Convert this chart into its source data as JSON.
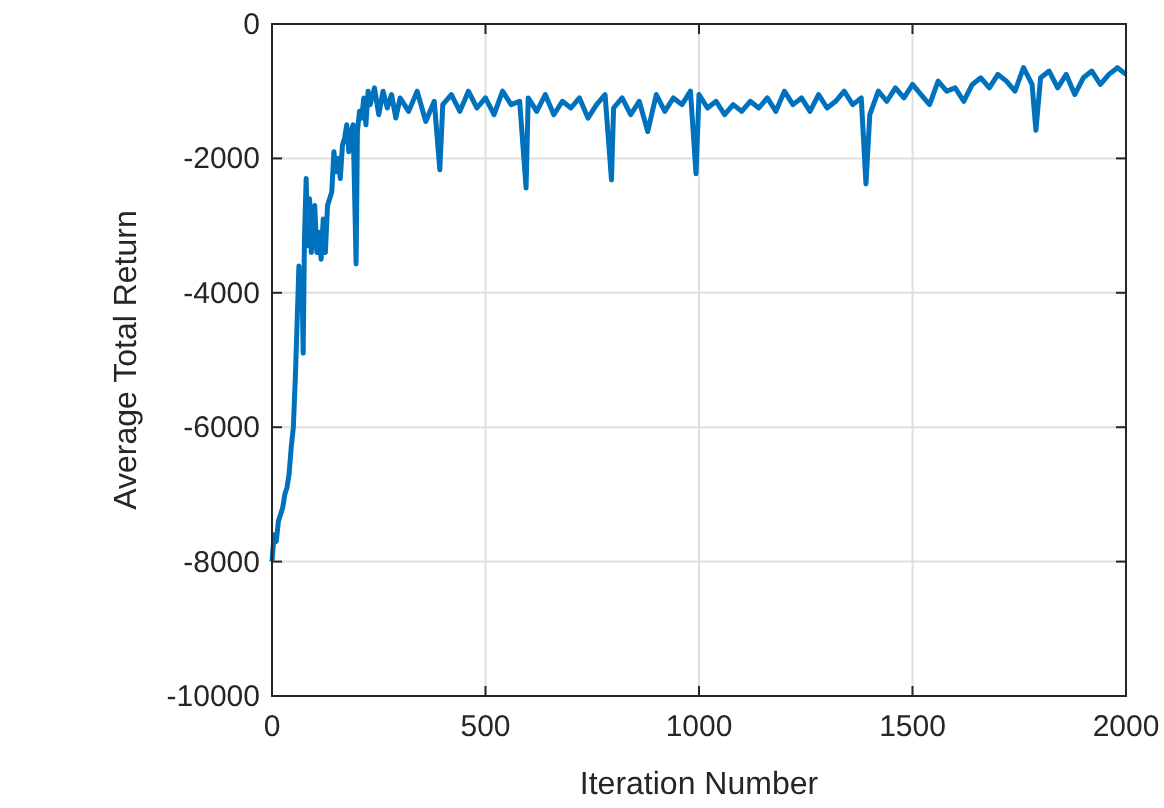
{
  "chart_data": {
    "type": "line",
    "xlabel": "Iteration Number",
    "ylabel": "Average Total Return",
    "xlim": [
      0,
      2000
    ],
    "ylim": [
      -10000,
      0
    ],
    "xticks": [
      0,
      500,
      1000,
      1500,
      2000
    ],
    "yticks": [
      -10000,
      -8000,
      -6000,
      -4000,
      -2000,
      0
    ],
    "grid": true,
    "series": [
      {
        "color": "#0072bd",
        "x": [
          0,
          5,
          10,
          15,
          20,
          25,
          30,
          35,
          40,
          45,
          50,
          55,
          60,
          63,
          66,
          70,
          73,
          76,
          80,
          84,
          88,
          92,
          96,
          100,
          105,
          110,
          115,
          120,
          125,
          130,
          135,
          140,
          145,
          150,
          155,
          160,
          165,
          170,
          175,
          180,
          185,
          190,
          197,
          200,
          205,
          210,
          215,
          220,
          225,
          230,
          240,
          250,
          260,
          270,
          280,
          290,
          300,
          320,
          340,
          360,
          380,
          393,
          400,
          420,
          440,
          460,
          480,
          500,
          520,
          540,
          560,
          580,
          595,
          600,
          620,
          640,
          660,
          680,
          700,
          720,
          740,
          760,
          780,
          795,
          800,
          820,
          840,
          860,
          880,
          900,
          920,
          940,
          960,
          980,
          993,
          1000,
          1020,
          1040,
          1060,
          1080,
          1100,
          1120,
          1140,
          1160,
          1180,
          1200,
          1220,
          1240,
          1260,
          1280,
          1300,
          1320,
          1340,
          1360,
          1380,
          1391,
          1400,
          1420,
          1440,
          1460,
          1480,
          1500,
          1520,
          1540,
          1560,
          1580,
          1600,
          1620,
          1640,
          1660,
          1680,
          1700,
          1720,
          1740,
          1760,
          1780,
          1789,
          1800,
          1820,
          1840,
          1860,
          1880,
          1900,
          1920,
          1940,
          1960,
          1980,
          2000
        ],
        "values": [
          -8000,
          -7600,
          -7700,
          -7400,
          -7300,
          -7200,
          -7000,
          -6900,
          -6700,
          -6300,
          -6000,
          -5200,
          -4200,
          -3600,
          -4000,
          -3700,
          -4900,
          -3200,
          -2300,
          -3300,
          -2600,
          -3400,
          -3000,
          -2700,
          -3400,
          -3100,
          -3500,
          -2900,
          -3400,
          -2700,
          -2600,
          -2500,
          -1900,
          -2200,
          -2000,
          -2300,
          -1800,
          -1700,
          -1500,
          -1900,
          -1600,
          -1500,
          -3570,
          -1600,
          -1300,
          -1400,
          -1100,
          -1500,
          -1000,
          -1200,
          -950,
          -1350,
          -1000,
          -1250,
          -1050,
          -1400,
          -1100,
          -1300,
          -1000,
          -1450,
          -1150,
          -2170,
          -1200,
          -1050,
          -1300,
          -1000,
          -1250,
          -1100,
          -1350,
          -1000,
          -1200,
          -1150,
          -2440,
          -1100,
          -1300,
          -1050,
          -1350,
          -1150,
          -1250,
          -1100,
          -1400,
          -1200,
          -1050,
          -2320,
          -1250,
          -1100,
          -1350,
          -1150,
          -1600,
          -1050,
          -1300,
          -1100,
          -1200,
          -1000,
          -2230,
          -1050,
          -1250,
          -1150,
          -1350,
          -1200,
          -1300,
          -1150,
          -1250,
          -1100,
          -1300,
          -1000,
          -1200,
          -1100,
          -1300,
          -1050,
          -1250,
          -1150,
          -1000,
          -1200,
          -1100,
          -2380,
          -1350,
          -1000,
          -1150,
          -950,
          -1100,
          -900,
          -1050,
          -1200,
          -850,
          -1000,
          -950,
          -1150,
          -900,
          -800,
          -950,
          -750,
          -850,
          -1000,
          -650,
          -900,
          -1580,
          -800,
          -700,
          -950,
          -750,
          -1050,
          -800,
          -700,
          -900,
          -750,
          -650,
          -750
        ]
      }
    ]
  }
}
